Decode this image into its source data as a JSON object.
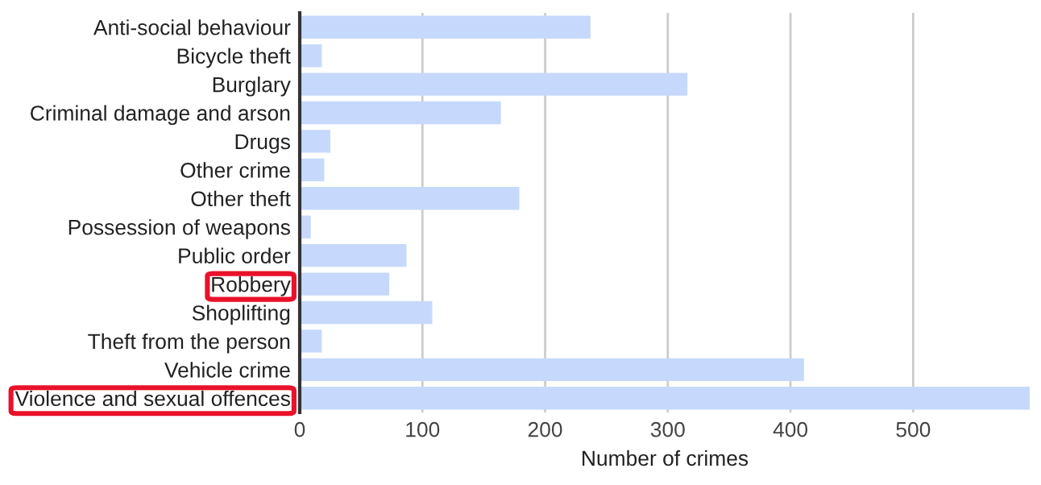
{
  "chart_data": {
    "type": "bar",
    "orientation": "horizontal",
    "xlabel": "Number of crimes",
    "categories": [
      "Anti-social behaviour",
      "Bicycle theft",
      "Burglary",
      "Criminal damage and arson",
      "Drugs",
      "Other crime",
      "Other theft",
      "Possession of weapons",
      "Public order",
      "Robbery",
      "Shoplifting",
      "Theft from the person",
      "Vehicle crime",
      "Violence and sexual offences"
    ],
    "values": [
      237,
      18,
      316,
      164,
      25,
      20,
      179,
      9,
      87,
      73,
      108,
      18,
      411,
      595
    ],
    "color": "#c6d9fc",
    "xlim": [
      0,
      595
    ],
    "xticks": [
      0,
      100,
      200,
      300,
      400,
      500
    ],
    "grid": "x"
  }
}
